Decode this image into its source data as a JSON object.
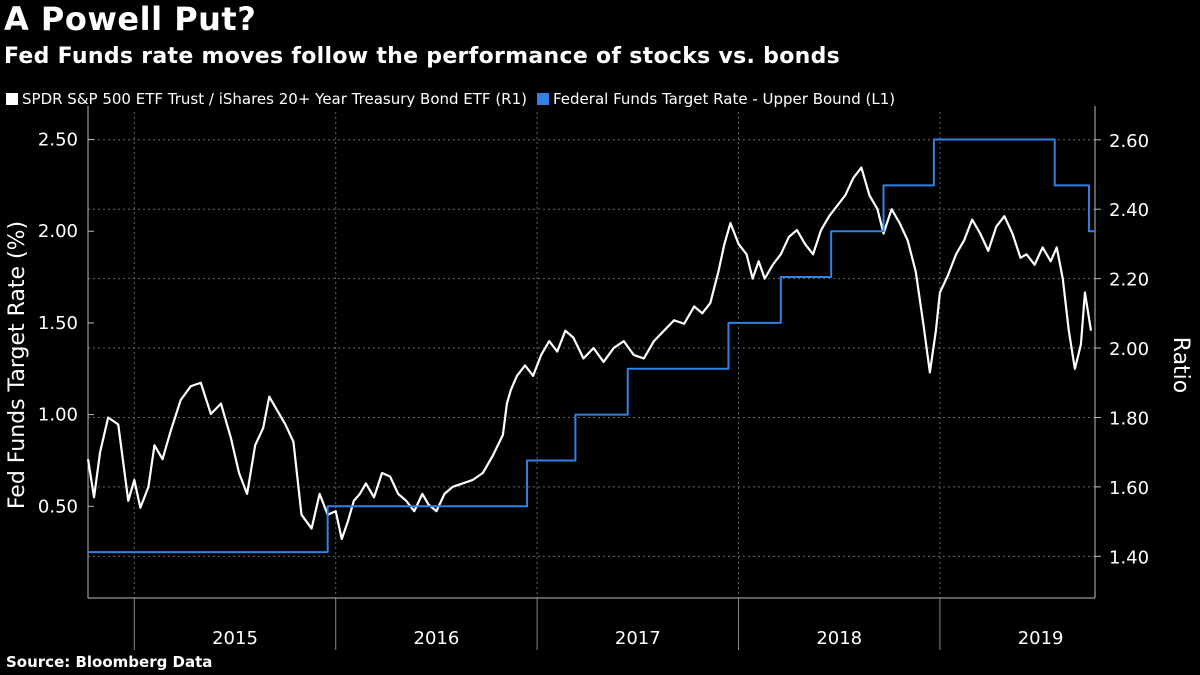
{
  "chart_data": {
    "type": "line",
    "title": "A Powell Put?",
    "subtitle": "Fed Funds rate moves follow the performance of stocks vs. bonds",
    "source": "Source: Bloomberg Data",
    "ylabel_left": "Fed Funds Target Rate (%)",
    "ylabel_right": "Ratio",
    "xlim": [
      2014.77,
      2019.77
    ],
    "ylim_left": [
      0.0,
      2.65
    ],
    "ylim_right": [
      1.28,
      2.68
    ],
    "yticks_left": [
      "0.50",
      "1.00",
      "1.50",
      "2.00",
      "2.50"
    ],
    "yticks_left_values": [
      0.5,
      1.0,
      1.5,
      2.0,
      2.5
    ],
    "yticks_right": [
      "1.40",
      "1.60",
      "1.80",
      "2.00",
      "2.20",
      "2.40",
      "2.60"
    ],
    "yticks_right_values": [
      1.4,
      1.6,
      1.8,
      2.0,
      2.2,
      2.4,
      2.6
    ],
    "x_categories": [
      "2015",
      "2016",
      "2017",
      "2018",
      "2019"
    ],
    "x_year_boundaries": [
      2015,
      2016,
      2017,
      2018,
      2019
    ],
    "series": [
      {
        "name": "SPDR S&P 500 ETF Trust / iShares 20+ Year Treasury Bond ETF (R1)",
        "axis": "right",
        "color": "#ffffff",
        "x": [
          2014.77,
          2014.8,
          2014.83,
          2014.87,
          2014.92,
          2014.97,
          2015.0,
          2015.03,
          2015.07,
          2015.1,
          2015.14,
          2015.18,
          2015.23,
          2015.28,
          2015.33,
          2015.38,
          2015.43,
          2015.48,
          2015.52,
          2015.56,
          2015.6,
          2015.64,
          2015.67,
          2015.71,
          2015.75,
          2015.79,
          2015.83,
          2015.88,
          2015.92,
          2015.96,
          2016.0,
          2016.03,
          2016.06,
          2016.09,
          2016.12,
          2016.15,
          2016.19,
          2016.23,
          2016.27,
          2016.31,
          2016.35,
          2016.39,
          2016.43,
          2016.46,
          2016.5,
          2016.54,
          2016.58,
          2016.63,
          2016.68,
          2016.73,
          2016.78,
          2016.83,
          2016.85,
          2016.87,
          2016.9,
          2016.94,
          2016.98,
          2017.02,
          2017.06,
          2017.1,
          2017.14,
          2017.18,
          2017.23,
          2017.28,
          2017.33,
          2017.38,
          2017.43,
          2017.48,
          2017.53,
          2017.58,
          2017.63,
          2017.68,
          2017.73,
          2017.78,
          2017.82,
          2017.86,
          2017.9,
          2017.93,
          2017.96,
          2018.0,
          2018.04,
          2018.07,
          2018.1,
          2018.13,
          2018.17,
          2018.21,
          2018.25,
          2018.29,
          2018.33,
          2018.37,
          2018.41,
          2018.45,
          2018.49,
          2018.53,
          2018.57,
          2018.61,
          2018.65,
          2018.69,
          2018.72,
          2018.76,
          2018.8,
          2018.84,
          2018.88,
          2018.92,
          2018.95,
          2018.98,
          2019.0,
          2019.04,
          2019.08,
          2019.12,
          2019.16,
          2019.2,
          2019.24,
          2019.28,
          2019.32,
          2019.36,
          2019.4,
          2019.43,
          2019.47,
          2019.51,
          2019.55,
          2019.58,
          2019.61,
          2019.64,
          2019.67,
          2019.7,
          2019.72,
          2019.75
        ],
        "values": [
          1.68,
          1.57,
          1.7,
          1.8,
          1.78,
          1.56,
          1.62,
          1.54,
          1.6,
          1.72,
          1.68,
          1.76,
          1.85,
          1.89,
          1.9,
          1.81,
          1.84,
          1.74,
          1.64,
          1.58,
          1.72,
          1.77,
          1.86,
          1.82,
          1.78,
          1.73,
          1.52,
          1.48,
          1.58,
          1.52,
          1.53,
          1.45,
          1.5,
          1.56,
          1.58,
          1.61,
          1.57,
          1.64,
          1.63,
          1.58,
          1.56,
          1.53,
          1.58,
          1.55,
          1.53,
          1.58,
          1.6,
          1.61,
          1.62,
          1.64,
          1.69,
          1.75,
          1.84,
          1.88,
          1.92,
          1.95,
          1.92,
          1.98,
          2.02,
          1.99,
          2.05,
          2.03,
          1.97,
          2.0,
          1.96,
          2.0,
          2.02,
          1.98,
          1.97,
          2.02,
          2.05,
          2.08,
          2.07,
          2.12,
          2.1,
          2.13,
          2.22,
          2.3,
          2.36,
          2.3,
          2.27,
          2.2,
          2.25,
          2.2,
          2.24,
          2.27,
          2.32,
          2.34,
          2.3,
          2.27,
          2.34,
          2.38,
          2.41,
          2.44,
          2.49,
          2.52,
          2.44,
          2.4,
          2.33,
          2.4,
          2.36,
          2.31,
          2.22,
          2.06,
          1.93,
          2.05,
          2.16,
          2.21,
          2.27,
          2.31,
          2.37,
          2.33,
          2.28,
          2.35,
          2.38,
          2.33,
          2.26,
          2.27,
          2.24,
          2.29,
          2.25,
          2.29,
          2.2,
          2.05,
          1.94,
          2.01,
          2.16,
          2.05
        ],
        "step": false
      },
      {
        "name": "Federal Funds Target Rate - Upper Bound  (L1)",
        "axis": "left",
        "color": "#2f83e4",
        "x": [
          2014.77,
          2015.96,
          2016.95,
          2017.19,
          2017.45,
          2017.95,
          2018.21,
          2018.46,
          2018.72,
          2018.97,
          2019.57,
          2019.74,
          2019.77
        ],
        "values": [
          0.25,
          0.5,
          0.75,
          1.0,
          1.25,
          1.5,
          1.75,
          2.0,
          2.25,
          2.5,
          2.25,
          2.0,
          2.0
        ],
        "step": true
      }
    ]
  }
}
